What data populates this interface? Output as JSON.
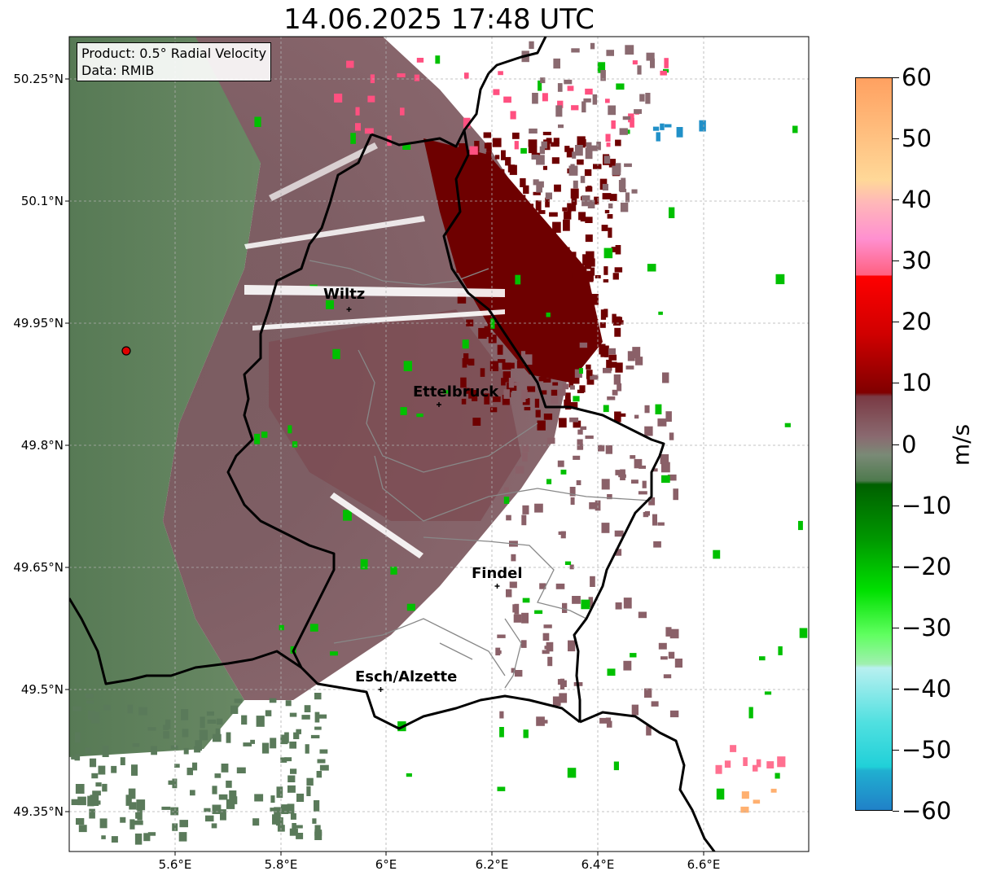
{
  "title": "14.06.2025 17:48 UTC",
  "info": {
    "product": "Product: 0.5° Radial Velocity",
    "source": "Data: RMIB"
  },
  "axes": {
    "y_ticks": [
      "50.25°N",
      "50.1°N",
      "49.95°N",
      "49.8°N",
      "49.65°N",
      "49.5°N",
      "49.35°N"
    ],
    "x_ticks": [
      "5.6°E",
      "5.8°E",
      "6°E",
      "6.2°E",
      "6.4°E",
      "6.6°E"
    ]
  },
  "cities": [
    {
      "name": "Wiltz",
      "lon": 5.93,
      "lat": 49.967
    },
    {
      "name": "Ettelbruck",
      "lon": 6.1,
      "lat": 49.85
    },
    {
      "name": "Findel",
      "lon": 6.21,
      "lat": 49.627
    },
    {
      "name": "Esch/Alzette",
      "lon": 5.99,
      "lat": 49.5
    }
  ],
  "radar_site": {
    "lon": 5.505,
    "lat": 49.914
  },
  "colorbar": {
    "label": "m/s",
    "ticks": [
      "60",
      "50",
      "40",
      "30",
      "20",
      "10",
      "0",
      "−10",
      "−20",
      "−30",
      "−40",
      "−50",
      "−60"
    ],
    "min": -60,
    "max": 60
  },
  "colors": {
    "near_zero_neg": "#5a7a5a",
    "near_zero_pos": "#8a5a62",
    "outbound_strong": "#6e0000",
    "inbound_green": "#00c800",
    "border": "#000000"
  }
}
